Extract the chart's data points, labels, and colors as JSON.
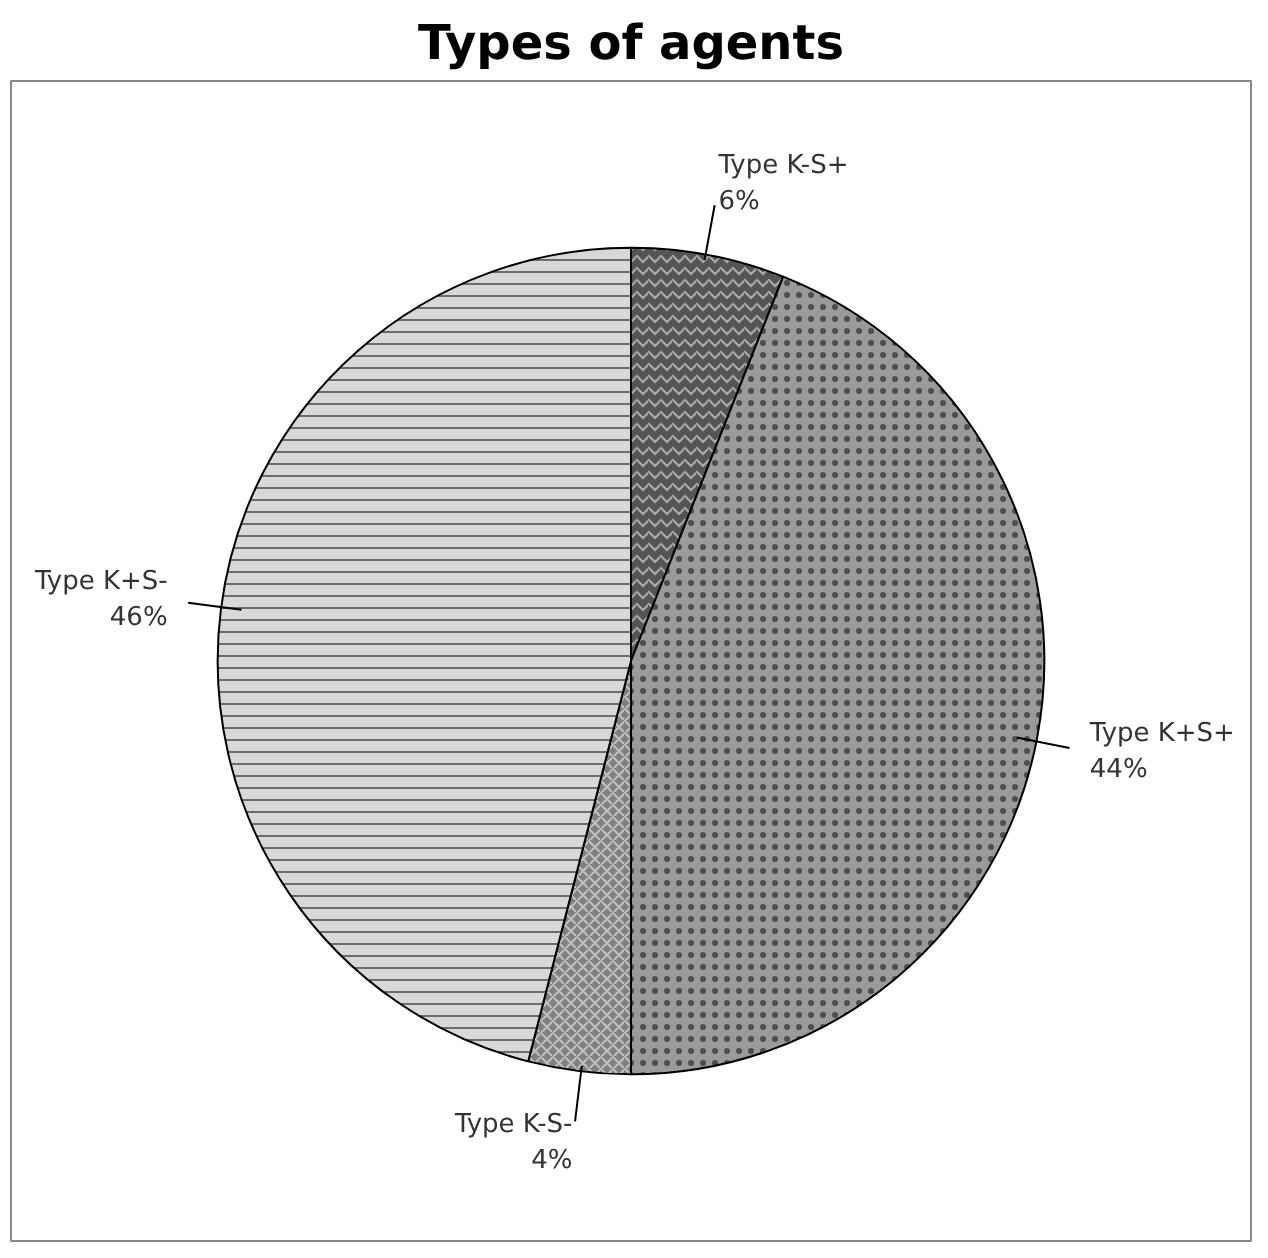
{
  "chart_data": {
    "type": "pie",
    "title": "Types of agents",
    "categories": [
      "Type K-S+",
      "Type K+S+",
      "Type K-S-",
      "Type K+S-"
    ],
    "values": [
      6,
      44,
      4,
      46
    ],
    "value_labels": [
      "6%",
      "44%",
      "4%",
      "46%"
    ],
    "colors": [
      "#555555",
      "#9a9a9a",
      "#808080",
      "#d8d8d8"
    ]
  }
}
